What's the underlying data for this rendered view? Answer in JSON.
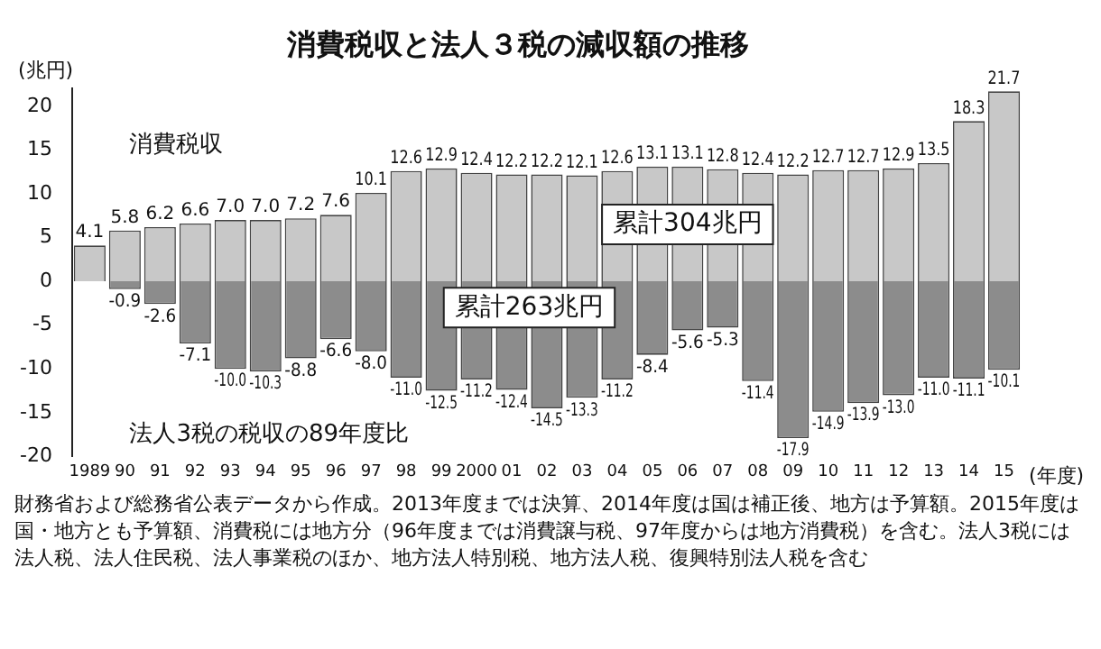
{
  "chart_data": {
    "type": "bar",
    "title": "消費税収と法人３税の減収額の推移",
    "ylabel": "(兆円)",
    "xlabel": "(年度)",
    "categories": [
      "1989",
      "90",
      "91",
      "92",
      "93",
      "94",
      "95",
      "96",
      "97",
      "98",
      "99",
      "2000",
      "01",
      "02",
      "03",
      "04",
      "05",
      "06",
      "07",
      "08",
      "09",
      "10",
      "11",
      "12",
      "13",
      "14",
      "15"
    ],
    "series": [
      {
        "name": "消費税収",
        "color": "#c8c8c8",
        "values": [
          4.1,
          5.8,
          6.2,
          6.6,
          7.0,
          7.0,
          7.2,
          7.6,
          10.1,
          12.6,
          12.9,
          12.4,
          12.2,
          12.2,
          12.1,
          12.6,
          13.1,
          13.1,
          12.8,
          12.4,
          12.2,
          12.7,
          12.7,
          12.9,
          13.5,
          18.3,
          21.7
        ],
        "value_labels": [
          "4.1",
          "5.8",
          "6.2",
          "6.6",
          "7.0",
          "7.0",
          "7.2",
          "7.6",
          "10.1",
          "12.6",
          "12.9",
          "12.4",
          "12.2",
          "12.2",
          "12.1",
          "12.6",
          "13.1",
          "13.1",
          "12.8",
          "12.4",
          "12.2",
          "12.7",
          "12.7",
          "12.9",
          "13.5",
          "18.3",
          "21.7"
        ]
      },
      {
        "name": "法人3税の税収の89年度比",
        "color": "#8c8c8c",
        "values": [
          null,
          -0.9,
          -2.6,
          -7.1,
          -10.0,
          -10.3,
          -8.8,
          -6.6,
          -8.0,
          -11.0,
          -12.5,
          -11.2,
          -12.4,
          -14.5,
          -13.3,
          -11.2,
          -8.4,
          -5.6,
          -5.3,
          -11.4,
          -17.9,
          -14.9,
          -13.9,
          -13.0,
          -11.0,
          -11.1,
          -10.1
        ],
        "value_labels": [
          null,
          "-0.9",
          "-2.6",
          "-7.1",
          "-10.0",
          "-10.3",
          "-8.8",
          "-6.6",
          "-8.0",
          "-11.0",
          "-12.5",
          "-11.2",
          "-12.4",
          "-14.5",
          "-13.3",
          "-11.2",
          "-8.4",
          "-5.6",
          "-5.3",
          "-11.4",
          "-17.9",
          "-14.9",
          "-13.9",
          "-13.0",
          "-11.0",
          "-11.1",
          "-10.1"
        ]
      }
    ],
    "stacked": true,
    "legend": false,
    "grid": false,
    "ylim": [
      -20,
      22
    ],
    "yticks": [
      -20,
      -15,
      -10,
      -5,
      0,
      5,
      10,
      15,
      20
    ],
    "annotations": [
      "累計304兆円",
      "累計263兆円",
      "財務省および総務省公表データから作成。2013年度までは決算、2014年度は国は補正後、地方は予算額。2015年度は国・地方とも予算額、消費税には地方分（96年度までは消費譲与税、97年度からは地方消費税）を含む。法人3税には法人税、法人住民税、法人事業税のほか、地方法人特別税、地方法人税、復興特別法人税を含む"
    ]
  }
}
